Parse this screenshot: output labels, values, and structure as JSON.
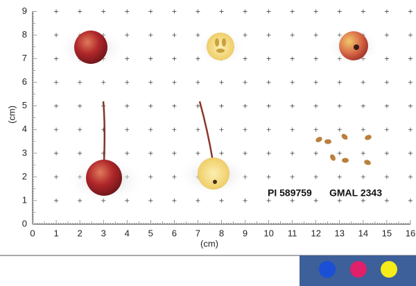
{
  "x_axis": {
    "label": "(cm)",
    "ticks": [
      0,
      1,
      2,
      3,
      4,
      5,
      6,
      7,
      8,
      9,
      10,
      11,
      12,
      13,
      14,
      15,
      16
    ]
  },
  "y_axis": {
    "label": "(cm)",
    "ticks": [
      0,
      1,
      2,
      3,
      4,
      5,
      6,
      7,
      8,
      9
    ]
  },
  "accession": "PI 589759",
  "specimen_id": "GMAL 2343"
}
